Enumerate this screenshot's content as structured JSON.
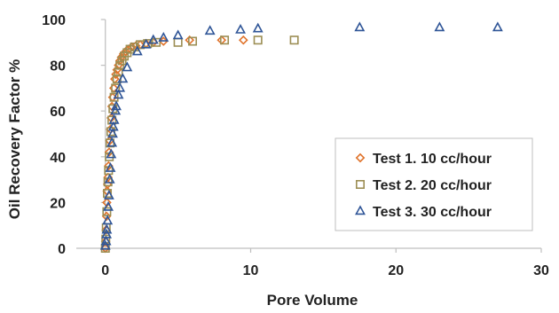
{
  "chart_data": {
    "type": "scatter",
    "title": "",
    "xlabel": "Pore Volume",
    "ylabel": "Oil Recovery Factor %",
    "xlim": [
      -2,
      30
    ],
    "ylim": [
      0,
      100
    ],
    "xticks": [
      0,
      10,
      20,
      30
    ],
    "yticks": [
      0,
      20,
      40,
      60,
      80,
      100
    ],
    "x_tick_labels": [
      "0",
      "10",
      "20",
      "30"
    ],
    "y_tick_labels": [
      "0",
      "20",
      "40",
      "60",
      "80",
      "100"
    ],
    "grid": false,
    "legend_position": "right-middle",
    "series": [
      {
        "name": "Test 1. 10 cc/hour",
        "marker": "diamond-open",
        "color": "#e0732b",
        "points": [
          [
            0.0,
            0
          ],
          [
            0.02,
            3
          ],
          [
            0.05,
            8
          ],
          [
            0.08,
            14
          ],
          [
            0.1,
            20
          ],
          [
            0.12,
            25
          ],
          [
            0.15,
            28
          ],
          [
            0.18,
            31
          ],
          [
            0.22,
            36
          ],
          [
            0.26,
            42
          ],
          [
            0.3,
            47
          ],
          [
            0.35,
            52
          ],
          [
            0.4,
            57
          ],
          [
            0.45,
            62
          ],
          [
            0.5,
            66
          ],
          [
            0.58,
            70
          ],
          [
            0.65,
            74
          ],
          [
            0.72,
            76
          ],
          [
            0.8,
            78
          ],
          [
            0.9,
            80
          ],
          [
            1.0,
            82
          ],
          [
            1.1,
            83.5
          ],
          [
            1.25,
            85
          ],
          [
            1.4,
            86
          ],
          [
            1.6,
            87
          ],
          [
            1.8,
            88
          ],
          [
            2.1,
            88.5
          ],
          [
            2.4,
            89
          ],
          [
            2.8,
            89.5
          ],
          [
            3.3,
            90
          ],
          [
            4.0,
            90.5
          ],
          [
            5.8,
            91
          ],
          [
            8.0,
            91
          ],
          [
            9.5,
            91
          ]
        ]
      },
      {
        "name": "Test 2. 20 cc/hour",
        "marker": "square-open",
        "color": "#9c8e54",
        "points": [
          [
            0.0,
            0
          ],
          [
            0.03,
            4
          ],
          [
            0.06,
            9
          ],
          [
            0.1,
            16
          ],
          [
            0.14,
            24
          ],
          [
            0.18,
            29
          ],
          [
            0.22,
            34
          ],
          [
            0.27,
            40
          ],
          [
            0.32,
            46
          ],
          [
            0.38,
            51
          ],
          [
            0.45,
            56
          ],
          [
            0.52,
            61
          ],
          [
            0.6,
            66
          ],
          [
            0.7,
            70
          ],
          [
            0.8,
            74
          ],
          [
            0.9,
            77
          ],
          [
            1.0,
            80
          ],
          [
            1.15,
            82
          ],
          [
            1.3,
            84
          ],
          [
            1.5,
            85.5
          ],
          [
            1.7,
            87
          ],
          [
            2.0,
            88
          ],
          [
            2.4,
            89
          ],
          [
            2.9,
            89.5
          ],
          [
            3.5,
            90
          ],
          [
            5.0,
            90
          ],
          [
            6.0,
            90.5
          ],
          [
            8.2,
            91
          ],
          [
            10.5,
            91
          ],
          [
            13.0,
            91
          ]
        ]
      },
      {
        "name": "Test 3. 30 cc/hour",
        "marker": "triangle-open",
        "color": "#2f5597",
        "points": [
          [
            0.0,
            1
          ],
          [
            0.05,
            3
          ],
          [
            0.08,
            6
          ],
          [
            0.1,
            8
          ],
          [
            0.15,
            12
          ],
          [
            0.2,
            18
          ],
          [
            0.25,
            23
          ],
          [
            0.3,
            30
          ],
          [
            0.35,
            35
          ],
          [
            0.4,
            41
          ],
          [
            0.45,
            46
          ],
          [
            0.5,
            50
          ],
          [
            0.55,
            53
          ],
          [
            0.6,
            56
          ],
          [
            0.7,
            60
          ],
          [
            0.75,
            62
          ],
          [
            0.9,
            67
          ],
          [
            1.0,
            70
          ],
          [
            1.2,
            74
          ],
          [
            1.5,
            79
          ],
          [
            2.2,
            86
          ],
          [
            2.8,
            89
          ],
          [
            3.3,
            91
          ],
          [
            4.0,
            92
          ],
          [
            5.0,
            93
          ],
          [
            7.2,
            95
          ],
          [
            9.3,
            95.5
          ],
          [
            10.5,
            96
          ],
          [
            17.5,
            96.5
          ],
          [
            23.0,
            96.5
          ],
          [
            27.0,
            96.5
          ]
        ]
      }
    ]
  }
}
